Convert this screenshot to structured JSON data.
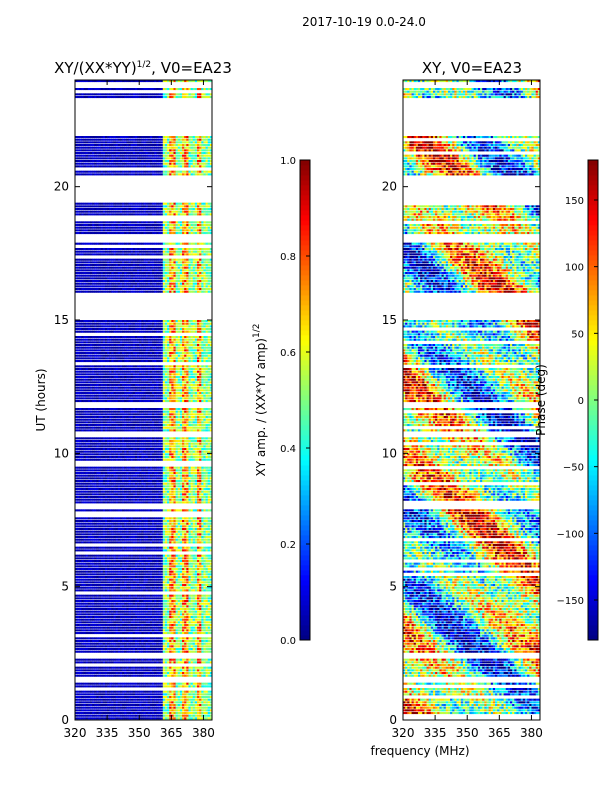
{
  "header": {
    "title": "2017-10-19 0.0-24.0"
  },
  "chart_data": [
    {
      "type": "heatmap",
      "title": "XY/(XX*YY)^{1/2}, V0=EA23",
      "title_main": "XY/(XX*YY)",
      "title_sup": "1/2",
      "title_tail": ", V0=EA23",
      "xlabel": "",
      "ylabel": "UT (hours)",
      "xlim": [
        320,
        384
      ],
      "ylim": [
        0,
        24
      ],
      "xticks": [
        320,
        335,
        350,
        365,
        380
      ],
      "yticks": [
        0,
        5,
        10,
        15,
        20
      ],
      "colorbar": {
        "label": "XY amp. / (XX*YY amp)^{1/2}",
        "label_main": "XY amp. / (XX*YY amp)",
        "label_sup": "1/2",
        "range": [
          0.0,
          1.0
        ],
        "ticks": [
          "0.0",
          "0.2",
          "0.4",
          "0.6",
          "0.8",
          "1.0"
        ],
        "tick_values": [
          0.0,
          0.2,
          0.4,
          0.6,
          0.8,
          1.0
        ],
        "colormap": "jet"
      }
    },
    {
      "type": "heatmap",
      "title": "XY, V0=EA23",
      "xlabel": "frequency (MHz)",
      "ylabel": "",
      "xlim": [
        320,
        384
      ],
      "ylim": [
        0,
        24
      ],
      "xticks": [
        320,
        335,
        350,
        365,
        380
      ],
      "yticks": [
        0,
        5,
        10,
        15,
        20
      ],
      "colorbar": {
        "label": "Phase (deg)",
        "range": [
          -180,
          180
        ],
        "ticks": [
          "−150",
          "−100",
          "−50",
          "0",
          "50",
          "100",
          "150"
        ],
        "tick_values": [
          -150,
          -100,
          -50,
          0,
          50,
          100,
          150
        ],
        "colormap": "jet"
      }
    }
  ],
  "data_gaps_hours": [
    [
      15.0,
      16.0
    ],
    [
      17.9,
      18.2
    ],
    [
      19.4,
      20.4
    ],
    [
      21.9,
      23.3
    ],
    [
      23.7,
      23.9
    ],
    [
      11.7,
      11.9
    ],
    [
      10.6,
      10.75
    ],
    [
      7.95,
      8.1
    ],
    [
      2.35,
      2.45
    ],
    [
      1.45,
      1.6
    ]
  ]
}
